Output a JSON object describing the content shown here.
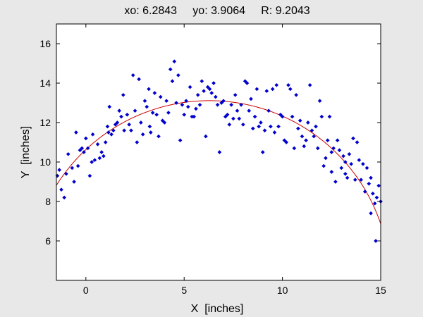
{
  "chart_data": {
    "type": "scatter",
    "title": "xo: 6.2843     yo: 3.9064     R: 9.2043",
    "xlabel": "X  [inches]",
    "ylabel": "Y  [inches]",
    "xlim": [
      -1.5,
      15
    ],
    "ylim": [
      4,
      17
    ],
    "xticks": [
      0,
      5,
      10,
      15
    ],
    "yticks": [
      6,
      8,
      10,
      12,
      14,
      16
    ],
    "grid": false,
    "points_color": "#0000cc",
    "fit_color": "#cc0000",
    "fit_circle": {
      "xo": 6.2843,
      "yo": 3.9064,
      "R": 9.2043
    },
    "points": [
      [
        -1.45,
        9.3
      ],
      [
        -1.35,
        9.6
      ],
      [
        -1.25,
        8.6
      ],
      [
        -1.1,
        8.2
      ],
      [
        -1.0,
        9.4
      ],
      [
        -0.9,
        10.4
      ],
      [
        -0.7,
        9.7
      ],
      [
        -0.6,
        9.0
      ],
      [
        -0.5,
        11.5
      ],
      [
        -0.4,
        9.8
      ],
      [
        -0.3,
        10.6
      ],
      [
        -0.2,
        10.7
      ],
      [
        -0.1,
        10.5
      ],
      [
        0.0,
        11.2
      ],
      [
        0.1,
        10.7
      ],
      [
        0.2,
        9.3
      ],
      [
        0.3,
        10.0
      ],
      [
        0.35,
        11.4
      ],
      [
        0.45,
        10.1
      ],
      [
        0.6,
        10.9
      ],
      [
        0.7,
        10.2
      ],
      [
        0.8,
        10.5
      ],
      [
        0.9,
        10.3
      ],
      [
        1.0,
        11.0
      ],
      [
        1.1,
        11.8
      ],
      [
        1.15,
        11.5
      ],
      [
        1.2,
        12.8
      ],
      [
        1.3,
        11.4
      ],
      [
        1.4,
        11.6
      ],
      [
        1.5,
        11.9
      ],
      [
        1.6,
        12.0
      ],
      [
        1.7,
        12.6
      ],
      [
        1.8,
        12.3
      ],
      [
        1.9,
        13.4
      ],
      [
        1.95,
        11.6
      ],
      [
        2.1,
        12.4
      ],
      [
        2.2,
        11.9
      ],
      [
        2.3,
        11.6
      ],
      [
        2.4,
        14.4
      ],
      [
        2.5,
        12.6
      ],
      [
        2.6,
        11.0
      ],
      [
        2.7,
        14.2
      ],
      [
        2.8,
        12.0
      ],
      [
        2.9,
        11.4
      ],
      [
        3.0,
        13.1
      ],
      [
        3.1,
        12.8
      ],
      [
        3.2,
        13.7
      ],
      [
        3.25,
        11.8
      ],
      [
        3.3,
        11.5
      ],
      [
        3.4,
        12.5
      ],
      [
        3.5,
        13.5
      ],
      [
        3.6,
        12.4
      ],
      [
        3.7,
        11.3
      ],
      [
        3.8,
        13.3
      ],
      [
        3.9,
        12.1
      ],
      [
        4.0,
        12.0
      ],
      [
        4.1,
        13.1
      ],
      [
        4.2,
        12.5
      ],
      [
        4.3,
        14.7
      ],
      [
        4.4,
        14.1
      ],
      [
        4.5,
        15.1
      ],
      [
        4.6,
        13.0
      ],
      [
        4.7,
        14.4
      ],
      [
        4.8,
        11.1
      ],
      [
        4.9,
        12.9
      ],
      [
        5.0,
        12.4
      ],
      [
        5.1,
        13.1
      ],
      [
        5.2,
        12.8
      ],
      [
        5.3,
        13.8
      ],
      [
        5.4,
        12.3
      ],
      [
        5.5,
        12.3
      ],
      [
        5.6,
        12.7
      ],
      [
        5.7,
        13.4
      ],
      [
        5.8,
        12.9
      ],
      [
        5.9,
        14.1
      ],
      [
        6.0,
        13.6
      ],
      [
        6.1,
        11.3
      ],
      [
        6.2,
        13.8
      ],
      [
        6.3,
        13.7
      ],
      [
        6.4,
        13.5
      ],
      [
        6.5,
        14.0
      ],
      [
        6.6,
        13.3
      ],
      [
        6.7,
        12.9
      ],
      [
        6.8,
        10.5
      ],
      [
        6.9,
        13.0
      ],
      [
        7.0,
        13.1
      ],
      [
        7.1,
        12.3
      ],
      [
        7.2,
        12.4
      ],
      [
        7.3,
        11.9
      ],
      [
        7.4,
        12.9
      ],
      [
        7.5,
        12.2
      ],
      [
        7.6,
        13.4
      ],
      [
        7.7,
        12.6
      ],
      [
        7.8,
        12.2
      ],
      [
        7.9,
        12.9
      ],
      [
        8.0,
        11.9
      ],
      [
        8.1,
        14.1
      ],
      [
        8.2,
        14.0
      ],
      [
        8.3,
        12.6
      ],
      [
        8.4,
        13.2
      ],
      [
        8.5,
        11.7
      ],
      [
        8.6,
        12.3
      ],
      [
        8.7,
        13.7
      ],
      [
        8.8,
        11.8
      ],
      [
        8.9,
        12.0
      ],
      [
        9.0,
        10.5
      ],
      [
        9.1,
        11.6
      ],
      [
        9.2,
        13.6
      ],
      [
        9.3,
        12.6
      ],
      [
        9.4,
        11.8
      ],
      [
        9.5,
        13.7
      ],
      [
        9.6,
        11.5
      ],
      [
        9.7,
        13.9
      ],
      [
        9.8,
        11.8
      ],
      [
        9.9,
        12.4
      ],
      [
        10.0,
        12.3
      ],
      [
        10.1,
        11.1
      ],
      [
        10.2,
        11.0
      ],
      [
        10.3,
        13.9
      ],
      [
        10.4,
        13.7
      ],
      [
        10.5,
        12.3
      ],
      [
        10.6,
        10.7
      ],
      [
        10.7,
        13.4
      ],
      [
        10.8,
        11.7
      ],
      [
        10.9,
        12.1
      ],
      [
        11.0,
        11.3
      ],
      [
        11.1,
        10.8
      ],
      [
        11.2,
        11.1
      ],
      [
        11.3,
        12.0
      ],
      [
        11.4,
        13.9
      ],
      [
        11.5,
        11.6
      ],
      [
        11.6,
        11.3
      ],
      [
        11.7,
        11.8
      ],
      [
        11.8,
        10.7
      ],
      [
        11.9,
        13.1
      ],
      [
        12.0,
        12.3
      ],
      [
        12.1,
        9.8
      ],
      [
        12.2,
        10.2
      ],
      [
        12.3,
        11.1
      ],
      [
        12.4,
        12.3
      ],
      [
        12.5,
        10.5
      ],
      [
        12.6,
        10.7
      ],
      [
        12.7,
        9.0
      ],
      [
        12.8,
        11.1
      ],
      [
        12.9,
        10.6
      ],
      [
        13.0,
        9.7
      ],
      [
        13.1,
        10.3
      ],
      [
        13.2,
        10.0
      ],
      [
        13.3,
        9.2
      ],
      [
        13.4,
        10.4
      ],
      [
        13.5,
        9.9
      ],
      [
        13.6,
        11.2
      ],
      [
        13.7,
        9.1
      ],
      [
        13.8,
        11.0
      ],
      [
        13.9,
        10.1
      ],
      [
        14.0,
        9.1
      ],
      [
        14.1,
        9.9
      ],
      [
        14.2,
        8.5
      ],
      [
        14.3,
        9.7
      ],
      [
        14.4,
        8.9
      ],
      [
        14.5,
        9.2
      ],
      [
        14.6,
        8.4
      ],
      [
        14.7,
        7.9
      ],
      [
        14.75,
        6.0
      ],
      [
        14.8,
        8.2
      ],
      [
        14.9,
        8.8
      ],
      [
        15.0,
        8.0
      ],
      [
        14.5,
        7.4
      ],
      [
        13.2,
        9.4
      ],
      [
        12.5,
        9.5
      ]
    ]
  }
}
